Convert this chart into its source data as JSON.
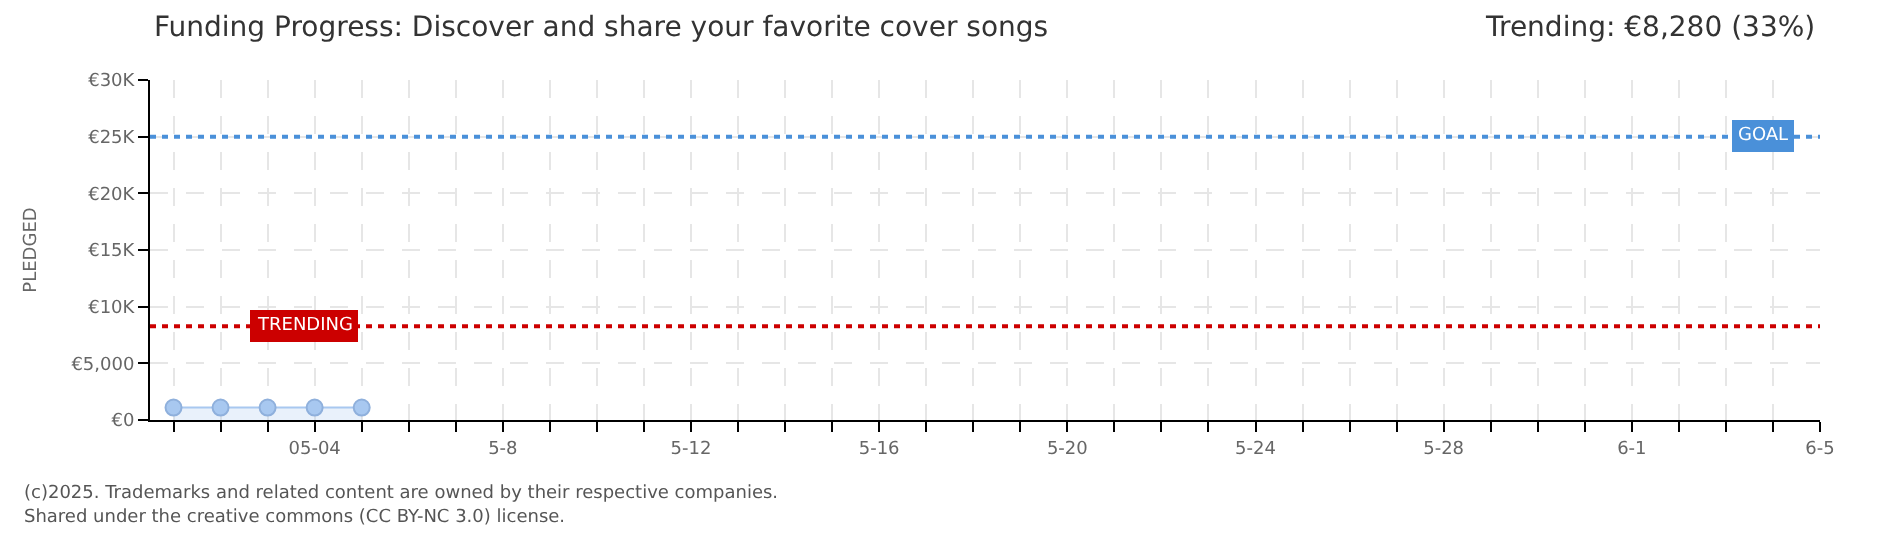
{
  "chart_data": {
    "type": "area",
    "title": "Funding Progress: Discover and share your favorite cover songs",
    "subtitle": "Trending: €8,280 (33%)",
    "ylabel": "PLEDGED",
    "x": [
      "--05-01",
      "--05-02",
      "--05-03",
      "--05-04",
      "--05-05"
    ],
    "series": [
      {
        "color": "#a8c8f0",
        "values": [
          1100,
          1100,
          1100,
          1100,
          1100
        ]
      }
    ],
    "marker": "circle",
    "grid": true,
    "xlim": [
      "--04-30T12:00",
      "--06-05T00:00"
    ],
    "xticks": [
      {
        "value": "--05-01",
        "label": null
      },
      {
        "value": "--05-02",
        "label": null
      },
      {
        "value": "--05-03",
        "label": null
      },
      {
        "value": "--05-04",
        "label": "05-04"
      },
      {
        "value": "--05-05",
        "label": null
      },
      {
        "value": "--05-06",
        "label": null
      },
      {
        "value": "--05-07",
        "label": null
      },
      {
        "value": "--05-08",
        "label": "5-8"
      },
      {
        "value": "--05-09",
        "label": null
      },
      {
        "value": "--05-10",
        "label": null
      },
      {
        "value": "--05-11",
        "label": null
      },
      {
        "value": "--05-12",
        "label": "5-12"
      },
      {
        "value": "--05-13",
        "label": null
      },
      {
        "value": "--05-14",
        "label": null
      },
      {
        "value": "--05-15",
        "label": null
      },
      {
        "value": "--05-16",
        "label": "5-16"
      },
      {
        "value": "--05-17",
        "label": null
      },
      {
        "value": "--05-18",
        "label": null
      },
      {
        "value": "--05-19",
        "label": null
      },
      {
        "value": "--05-20",
        "label": "5-20"
      },
      {
        "value": "--05-21",
        "label": null
      },
      {
        "value": "--05-22",
        "label": null
      },
      {
        "value": "--05-23",
        "label": null
      },
      {
        "value": "--05-24",
        "label": "5-24"
      },
      {
        "value": "--05-25",
        "label": null
      },
      {
        "value": "--05-26",
        "label": null
      },
      {
        "value": "--05-27",
        "label": null
      },
      {
        "value": "--05-28",
        "label": "5-28"
      },
      {
        "value": "--05-29",
        "label": null
      },
      {
        "value": "--05-30",
        "label": null
      },
      {
        "value": "--05-31",
        "label": null
      },
      {
        "value": "--06-01",
        "label": "6-1"
      },
      {
        "value": "--06-02",
        "label": null
      },
      {
        "value": "--06-03",
        "label": null
      },
      {
        "value": "--06-04",
        "label": null
      },
      {
        "value": "--06-05",
        "label": "6-5"
      }
    ],
    "ylim": [
      0,
      30000
    ],
    "yticks": [
      {
        "value": 0,
        "label": "€0"
      },
      {
        "value": 5000,
        "label": "€5,000"
      },
      {
        "value": 10000,
        "label": "€10K"
      },
      {
        "value": 15000,
        "label": "€15K"
      },
      {
        "value": 20000,
        "label": "€20K"
      },
      {
        "value": 25000,
        "label": "€25K"
      },
      {
        "value": 30000,
        "label": "€30K"
      }
    ],
    "ref_lines": [
      {
        "axis": "y",
        "value": 25000,
        "label": "GOAL",
        "color": "#4a90d9",
        "line_style": "dotted"
      },
      {
        "axis": "y",
        "value": 8280,
        "label": "TRENDING",
        "color": "#cc0000",
        "line_style": "dotted"
      }
    ],
    "annotations": [
      "(c)2025. Trademarks and related content are owned by their respective companies.",
      "Shared under the creative commons (CC BY-NC 3.0) license."
    ]
  }
}
